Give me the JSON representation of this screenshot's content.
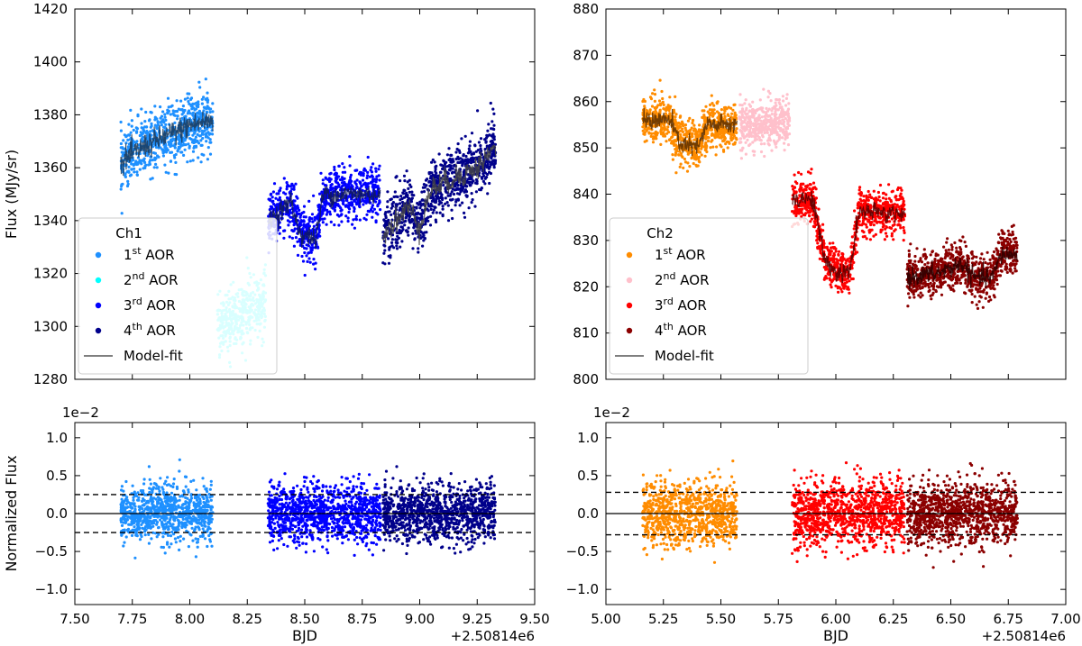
{
  "chart_data": [
    {
      "id": "ch1-flux",
      "type": "scatter",
      "xlim": [
        7.5,
        9.5
      ],
      "ylim": [
        1280,
        1420
      ],
      "xticks": [
        7.5,
        7.75,
        8.0,
        8.25,
        8.5,
        8.75,
        9.0,
        9.25,
        9.5
      ],
      "yticks": [
        1280,
        1300,
        1320,
        1340,
        1360,
        1380,
        1400,
        1420
      ],
      "ytick_labels": [
        "1280",
        "1300",
        "1320",
        "1340",
        "1360",
        "1380",
        "1400",
        "1420"
      ],
      "show_xtick_labels": false,
      "ylabel": "Flux (MJy/sr)",
      "legend": {
        "title": "Ch1",
        "placement": "lower-left",
        "entries": [
          {
            "label": "1st AOR",
            "base": "1",
            "sup": "st",
            "rest": " AOR",
            "color": "#1e90ff",
            "kind": "dot"
          },
          {
            "label": "2nd AOR",
            "base": "2",
            "sup": "nd",
            "rest": " AOR",
            "color": "#00ffff",
            "kind": "dot"
          },
          {
            "label": "3rd AOR",
            "base": "3",
            "sup": "rd",
            "rest": " AOR",
            "color": "#0000ff",
            "kind": "dot"
          },
          {
            "label": "4th AOR",
            "base": "4",
            "sup": "th",
            "rest": " AOR",
            "color": "#00008b",
            "kind": "dot"
          },
          {
            "label": "Model-fit",
            "base": "Model-fit",
            "sup": "",
            "rest": "",
            "color": "#555555",
            "kind": "line"
          }
        ]
      },
      "series": [
        {
          "name": "1st AOR",
          "color": "#1e90ff",
          "model_color": "#1a3a5a",
          "segments": [
            {
              "x0": 7.7,
              "x1": 8.1,
              "y": [
                [
                  7.7,
                  1362
                ],
                [
                  7.8,
                  1368
                ],
                [
                  7.9,
                  1372
                ],
                [
                  8.0,
                  1376
                ],
                [
                  8.1,
                  1378
                ]
              ],
              "spread": 7,
              "count": 700
            }
          ]
        },
        {
          "name": "2nd AOR",
          "color": "#00ffff",
          "model_color": "",
          "segments": [
            {
              "x0": 8.12,
              "x1": 8.33,
              "y": [
                [
                  8.12,
                  1300
                ],
                [
                  8.22,
                  1305
                ],
                [
                  8.33,
                  1310
                ]
              ],
              "spread": 7,
              "count": 420
            }
          ]
        },
        {
          "name": "3rd AOR",
          "color": "#0000ff",
          "model_color": "#111a55",
          "segments": [
            {
              "x0": 8.34,
              "x1": 8.83,
              "y": [
                [
                  8.34,
                  1340
                ],
                [
                  8.44,
                  1347
                ],
                [
                  8.48,
                  1335
                ],
                [
                  8.55,
                  1333
                ],
                [
                  8.58,
                  1350
                ],
                [
                  8.7,
                  1350
                ],
                [
                  8.83,
                  1350
                ]
              ],
              "spread": 6,
              "count": 900
            }
          ]
        },
        {
          "name": "4th AOR",
          "color": "#00008b",
          "model_color": "#444444",
          "segments": [
            {
              "x0": 8.84,
              "x1": 9.33,
              "y": [
                [
                  8.84,
                  1335
                ],
                [
                  8.95,
                  1345
                ],
                [
                  9.0,
                  1338
                ],
                [
                  9.05,
                  1352
                ],
                [
                  9.15,
                  1356
                ],
                [
                  9.25,
                  1360
                ],
                [
                  9.33,
                  1368
                ]
              ],
              "spread": 7,
              "count": 900
            }
          ]
        }
      ]
    },
    {
      "id": "ch1-resid",
      "type": "scatter",
      "xlim": [
        7.5,
        9.5
      ],
      "ylim": [
        -1.2,
        1.2
      ],
      "xticks": [
        7.5,
        7.75,
        8.0,
        8.25,
        8.5,
        8.75,
        9.0,
        9.25,
        9.5
      ],
      "xtick_labels": [
        "7.50",
        "7.75",
        "8.00",
        "8.25",
        "8.50",
        "8.75",
        "9.00",
        "9.25",
        "9.50"
      ],
      "yticks": [
        -1.0,
        -0.5,
        0.0,
        0.5,
        1.0
      ],
      "ytick_labels": [
        "−1.0",
        "−0.5",
        "0.0",
        "0.5",
        "1.0"
      ],
      "ylabel": "Normalized Flux",
      "xlabel": "BJD",
      "y_offset_text": "1e−2",
      "x_offset_text": "+2.50814e6",
      "hlines": [
        {
          "y": 0.0,
          "style": "solid"
        },
        {
          "y": 0.25,
          "style": "dashed"
        },
        {
          "y": -0.25,
          "style": "dashed"
        }
      ],
      "series": [
        {
          "name": "1st AOR",
          "color": "#1e90ff",
          "segments": [
            {
              "x0": 7.7,
              "x1": 8.1,
              "spread": 0.25,
              "count": 900
            }
          ]
        },
        {
          "name": "3rd AOR",
          "color": "#0000ff",
          "segments": [
            {
              "x0": 8.34,
              "x1": 8.83,
              "spread": 0.25,
              "count": 1100
            }
          ]
        },
        {
          "name": "4th AOR",
          "color": "#00008b",
          "segments": [
            {
              "x0": 8.84,
              "x1": 9.33,
              "spread": 0.25,
              "count": 1100
            }
          ]
        }
      ]
    },
    {
      "id": "ch2-flux",
      "type": "scatter",
      "xlim": [
        5.0,
        7.0
      ],
      "ylim": [
        800,
        880
      ],
      "xticks": [
        5.0,
        5.25,
        5.5,
        5.75,
        6.0,
        6.25,
        6.5,
        6.75,
        7.0
      ],
      "yticks": [
        800,
        810,
        820,
        830,
        840,
        850,
        860,
        870,
        880
      ],
      "ytick_labels": [
        "800",
        "810",
        "820",
        "830",
        "840",
        "850",
        "860",
        "870",
        "880"
      ],
      "show_xtick_labels": false,
      "ylabel": "",
      "legend": {
        "title": "Ch2",
        "placement": "lower-left",
        "entries": [
          {
            "label": "1st AOR",
            "base": "1",
            "sup": "st",
            "rest": " AOR",
            "color": "#ff8c00",
            "kind": "dot"
          },
          {
            "label": "2nd AOR",
            "base": "2",
            "sup": "nd",
            "rest": " AOR",
            "color": "#ffc0cb",
            "kind": "dot"
          },
          {
            "label": "3rd AOR",
            "base": "3",
            "sup": "rd",
            "rest": " AOR",
            "color": "#ff0000",
            "kind": "dot"
          },
          {
            "label": "4th AOR",
            "base": "4",
            "sup": "th",
            "rest": " AOR",
            "color": "#8b0000",
            "kind": "dot"
          },
          {
            "label": "Model-fit",
            "base": "Model-fit",
            "sup": "",
            "rest": "",
            "color": "#555555",
            "kind": "line"
          }
        ]
      },
      "series": [
        {
          "name": "1st AOR",
          "color": "#ff8c00",
          "model_color": "#5a2e00",
          "segments": [
            {
              "x0": 5.16,
              "x1": 5.57,
              "y": [
                [
                  5.16,
                  856
                ],
                [
                  5.28,
                  856
                ],
                [
                  5.32,
                  851
                ],
                [
                  5.4,
                  850
                ],
                [
                  5.44,
                  855
                ],
                [
                  5.57,
                  855
                ]
              ],
              "spread": 3,
              "count": 800
            }
          ]
        },
        {
          "name": "2nd AOR",
          "color": "#ffc0cb",
          "model_color": "",
          "segments": [
            {
              "x0": 5.58,
              "x1": 5.8,
              "y": [
                [
                  5.58,
                  855
                ],
                [
                  5.8,
                  855
                ]
              ],
              "spread": 3,
              "count": 450
            }
          ]
        },
        {
          "name": "3rd AOR",
          "color": "#ff0000",
          "model_color": "#550000",
          "segments": [
            {
              "x0": 5.81,
              "x1": 6.3,
              "y": [
                [
                  5.81,
                  839
                ],
                [
                  5.9,
                  839
                ],
                [
                  5.95,
                  826
                ],
                [
                  6.0,
                  823
                ],
                [
                  6.06,
                  823
                ],
                [
                  6.1,
                  836
                ],
                [
                  6.3,
                  836
                ]
              ],
              "spread": 3,
              "count": 900
            }
          ]
        },
        {
          "name": "4th AOR",
          "color": "#8b0000",
          "model_color": "#2a0000",
          "segments": [
            {
              "x0": 6.31,
              "x1": 6.79,
              "y": [
                [
                  6.31,
                  822
                ],
                [
                  6.45,
                  823
                ],
                [
                  6.55,
                  825
                ],
                [
                  6.6,
                  822
                ],
                [
                  6.68,
                  822
                ],
                [
                  6.72,
                  827
                ],
                [
                  6.79,
                  827
                ]
              ],
              "spread": 3,
              "count": 900
            }
          ]
        }
      ]
    },
    {
      "id": "ch2-resid",
      "type": "scatter",
      "xlim": [
        5.0,
        7.0
      ],
      "ylim": [
        -1.2,
        1.2
      ],
      "xticks": [
        5.0,
        5.25,
        5.5,
        5.75,
        6.0,
        6.25,
        6.5,
        6.75,
        7.0
      ],
      "xtick_labels": [
        "5.00",
        "5.25",
        "5.50",
        "5.75",
        "6.00",
        "6.25",
        "6.50",
        "6.75",
        "7.00"
      ],
      "yticks": [
        -1.0,
        -0.5,
        0.0,
        0.5,
        1.0
      ],
      "ytick_labels": [
        "−1.0",
        "−0.5",
        "0.0",
        "0.5",
        "1.0"
      ],
      "ylabel": "",
      "xlabel": "BJD",
      "y_offset_text": "1e−2",
      "x_offset_text": "+2.50814e6",
      "hlines": [
        {
          "y": 0.0,
          "style": "solid"
        },
        {
          "y": 0.28,
          "style": "dashed"
        },
        {
          "y": -0.28,
          "style": "dashed"
        }
      ],
      "series": [
        {
          "name": "1st AOR",
          "color": "#ff8c00",
          "segments": [
            {
              "x0": 5.16,
              "x1": 5.57,
              "spread": 0.28,
              "count": 900
            }
          ]
        },
        {
          "name": "3rd AOR",
          "color": "#ff0000",
          "segments": [
            {
              "x0": 5.81,
              "x1": 6.3,
              "spread": 0.28,
              "count": 1100
            }
          ]
        },
        {
          "name": "4th AOR",
          "color": "#8b0000",
          "segments": [
            {
              "x0": 6.31,
              "x1": 6.79,
              "spread": 0.28,
              "count": 1100
            }
          ]
        }
      ]
    }
  ]
}
